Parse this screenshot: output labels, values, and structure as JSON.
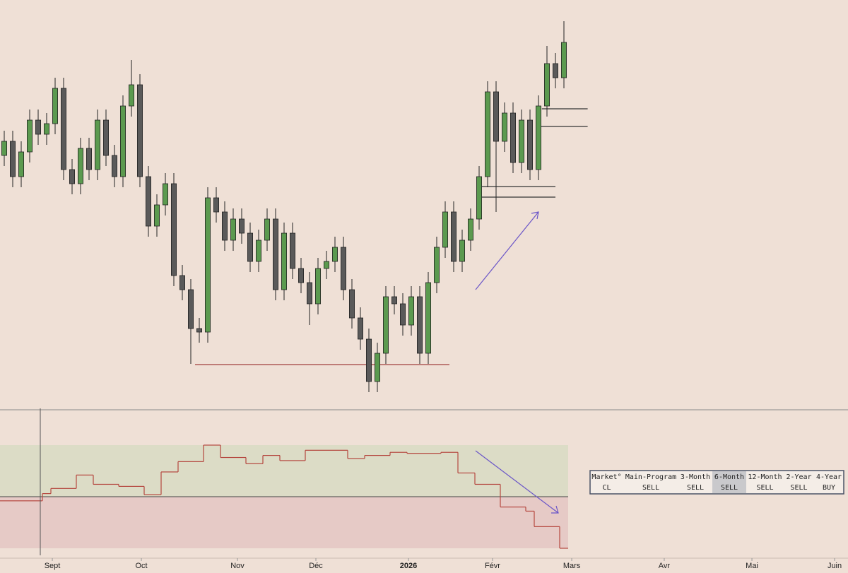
{
  "chart_data": {
    "type": "candlestick",
    "open": [
      380,
      400,
      350,
      385,
      430,
      410,
      425,
      475,
      360,
      340,
      390,
      360,
      430,
      380,
      350,
      450,
      480,
      350,
      280,
      310,
      340,
      210,
      190,
      135,
      130,
      320,
      300,
      260,
      290,
      270,
      230,
      260,
      290,
      190,
      270,
      220,
      200,
      170,
      220,
      230,
      250,
      190,
      150,
      120,
      60,
      100,
      180,
      170,
      140,
      180,
      100,
      200,
      250,
      300,
      230,
      260,
      290,
      350,
      470,
      400,
      440,
      370,
      430,
      360,
      450,
      510,
      490
    ],
    "high": [
      415,
      415,
      400,
      445,
      445,
      440,
      490,
      490,
      375,
      405,
      405,
      445,
      445,
      395,
      465,
      515,
      495,
      365,
      325,
      355,
      355,
      225,
      205,
      150,
      335,
      335,
      315,
      305,
      305,
      285,
      275,
      305,
      305,
      285,
      285,
      235,
      215,
      235,
      245,
      265,
      265,
      205,
      165,
      135,
      115,
      195,
      195,
      185,
      195,
      195,
      215,
      265,
      315,
      315,
      275,
      305,
      365,
      485,
      485,
      455,
      455,
      445,
      445,
      465,
      535,
      525,
      570
    ],
    "low": [
      365,
      335,
      335,
      370,
      395,
      395,
      410,
      345,
      325,
      325,
      345,
      345,
      365,
      335,
      335,
      435,
      335,
      265,
      265,
      295,
      195,
      175,
      85,
      115,
      115,
      285,
      245,
      245,
      255,
      215,
      215,
      245,
      175,
      175,
      205,
      185,
      140,
      155,
      205,
      215,
      175,
      135,
      105,
      45,
      45,
      85,
      155,
      125,
      125,
      85,
      85,
      185,
      235,
      215,
      215,
      245,
      275,
      335,
      300,
      385,
      355,
      355,
      345,
      345,
      435,
      475,
      475
    ],
    "close": [
      400,
      350,
      385,
      430,
      410,
      425,
      475,
      360,
      340,
      390,
      360,
      430,
      380,
      350,
      450,
      480,
      350,
      280,
      310,
      340,
      210,
      190,
      135,
      130,
      320,
      300,
      260,
      290,
      270,
      230,
      260,
      290,
      190,
      270,
      220,
      200,
      170,
      220,
      230,
      250,
      190,
      150,
      120,
      60,
      100,
      180,
      170,
      140,
      180,
      100,
      200,
      250,
      300,
      230,
      260,
      290,
      350,
      470,
      400,
      440,
      370,
      430,
      360,
      450,
      510,
      490,
      540
    ],
    "up_color": "#5b9a4f",
    "down_color": "#5a5a5a",
    "ylim": [
      20,
      600
    ],
    "xlim": [
      -0.5,
      99.5
    ],
    "xticks": [
      {
        "value": 5.67,
        "label": "Sept"
      },
      {
        "value": 16.17,
        "label": "Oct"
      },
      {
        "value": 27.5,
        "label": "Nov"
      },
      {
        "value": 36.75,
        "label": "Déc"
      },
      {
        "value": 47.67,
        "label": "2026"
      },
      {
        "value": 57.58,
        "label": "Févr"
      },
      {
        "value": 66.92,
        "label": "Mars"
      },
      {
        "value": 77.83,
        "label": "Avr"
      },
      {
        "value": 88.17,
        "label": "Mai"
      },
      {
        "value": 97.92,
        "label": "Juin"
      }
    ],
    "levels": [
      {
        "value": 84,
        "from": 22.5,
        "to": 52.5,
        "color": "#a0413f"
      },
      {
        "value": 446,
        "from": 63.4,
        "to": 68.8,
        "color": "#333333"
      },
      {
        "value": 421,
        "from": 62.8,
        "to": 68.8,
        "color": "#333333"
      },
      {
        "value": 336,
        "from": 56.2,
        "to": 65,
        "color": "#333333"
      },
      {
        "value": 321,
        "from": 56.2,
        "to": 65,
        "color": "#333333"
      }
    ],
    "indicator": {
      "values": [
        46,
        46,
        46,
        46,
        46,
        53,
        58,
        58,
        58,
        71,
        71,
        62,
        62,
        62,
        60,
        60,
        60,
        52,
        52,
        74,
        74,
        84,
        84,
        84,
        100,
        100,
        88,
        88,
        88,
        82,
        82,
        90,
        90,
        85,
        85,
        85,
        95,
        95,
        95,
        95,
        95,
        87,
        87,
        90,
        90,
        90,
        93,
        93,
        92,
        92,
        92,
        92,
        93,
        93,
        73,
        73,
        62,
        62,
        62,
        40,
        40,
        40,
        36,
        21,
        21,
        21,
        0
      ],
      "ylim": [
        0,
        100
      ],
      "threshold": 50,
      "color": "#b5473f",
      "upper_color": "#dcdcc6",
      "lower_color": "#e6cac6"
    }
  },
  "table": {
    "header": [
      "Market°",
      "Main-Program",
      "3-Month",
      "6-Month",
      "12-Month",
      "2-Year",
      "4-Year"
    ],
    "row": [
      "CL",
      "SELL",
      "SELL",
      "SELL",
      "SELL",
      "SELL",
      "BUY"
    ],
    "highlight": 3
  }
}
